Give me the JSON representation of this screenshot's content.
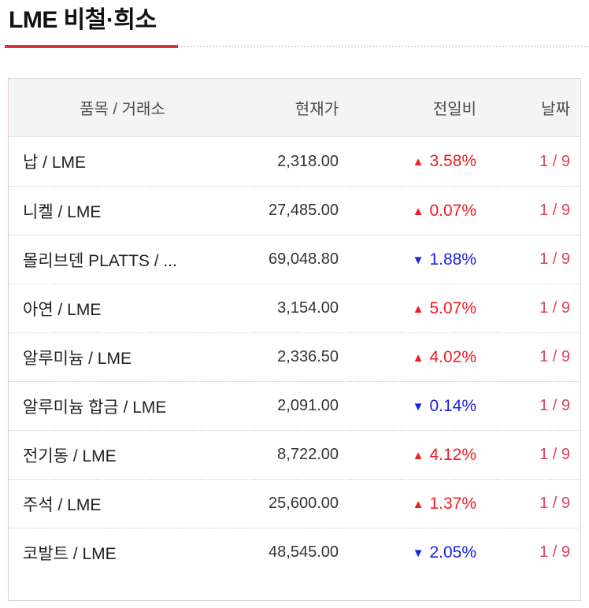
{
  "page": {
    "title": "LME 비철·희소"
  },
  "colors": {
    "accent_red": "#d6363c",
    "up": "#ee1d23",
    "down": "#1c22dd",
    "date_red": "#e04158"
  },
  "table": {
    "headers": {
      "item": "품목 / 거래소",
      "price": "현재가",
      "change": "전일비",
      "date": "날짜"
    },
    "glyphs": {
      "up": "▲",
      "down": "▼"
    },
    "rows": [
      {
        "item": "납 / LME",
        "price": "2,318.00",
        "direction": "up",
        "change": "3.58%",
        "date": "1 / 9"
      },
      {
        "item": "니켈 / LME",
        "price": "27,485.00",
        "direction": "up",
        "change": "0.07%",
        "date": "1 / 9"
      },
      {
        "item": "몰리브덴 PLATTS / ...",
        "price": "69,048.80",
        "direction": "down",
        "change": "1.88%",
        "date": "1 / 9"
      },
      {
        "item": "아연 / LME",
        "price": "3,154.00",
        "direction": "up",
        "change": "5.07%",
        "date": "1 / 9"
      },
      {
        "item": "알루미늄 / LME",
        "price": "2,336.50",
        "direction": "up",
        "change": "4.02%",
        "date": "1 / 9"
      },
      {
        "item": "알루미늄 합금 / LME",
        "price": "2,091.00",
        "direction": "down",
        "change": "0.14%",
        "date": "1 / 9"
      },
      {
        "item": "전기동 / LME",
        "price": "8,722.00",
        "direction": "up",
        "change": "4.12%",
        "date": "1 / 9"
      },
      {
        "item": "주석 / LME",
        "price": "25,600.00",
        "direction": "up",
        "change": "1.37%",
        "date": "1 / 9"
      },
      {
        "item": "코발트 / LME",
        "price": "48,545.00",
        "direction": "down",
        "change": "2.05%",
        "date": "1 / 9"
      }
    ]
  }
}
